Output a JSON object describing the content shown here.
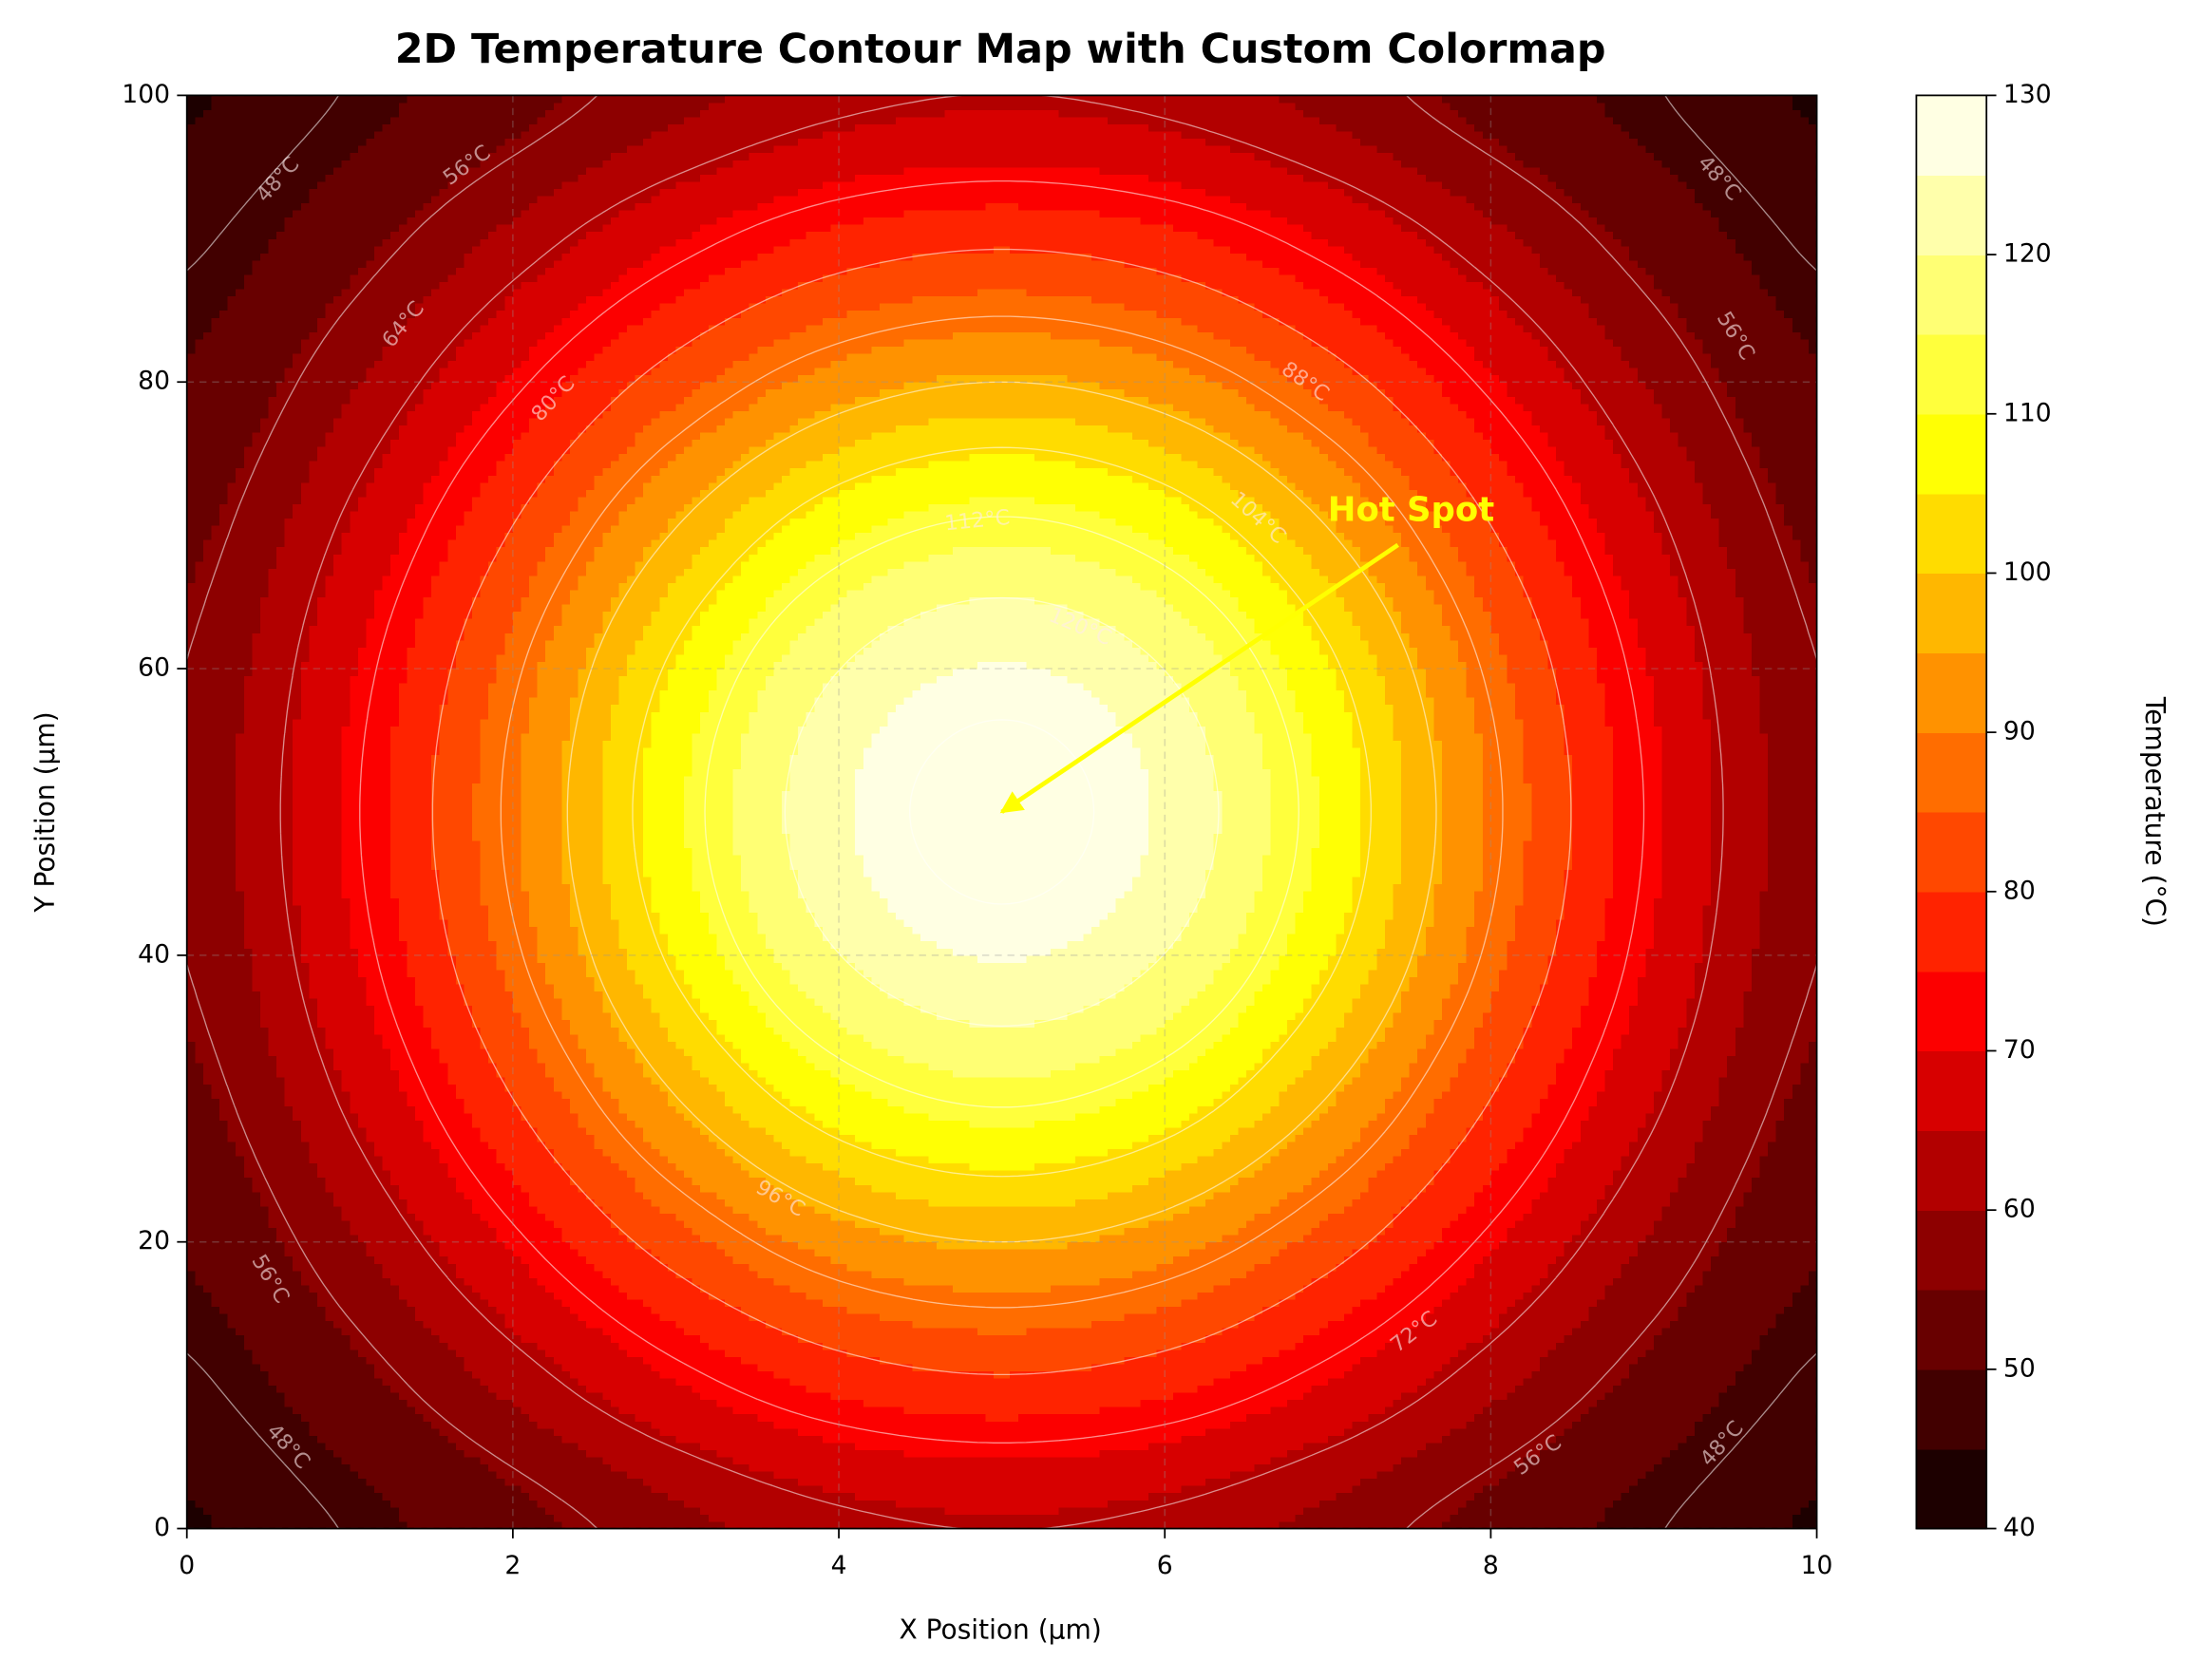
{
  "chart_data": {
    "type": "contour",
    "title": "2D Temperature Contour Map with Custom Colormap",
    "xlabel": "X Position (µm)",
    "ylabel": "Y Position (µm)",
    "colorbar_label": "Temperature (°C)",
    "colormap": "hot",
    "x": [
      0,
      1,
      2,
      3,
      4,
      5,
      6,
      7,
      8,
      9,
      10
    ],
    "y": [
      0,
      10,
      20,
      30,
      40,
      50,
      60,
      70,
      80,
      90,
      100
    ],
    "z": [
      [
        44.6,
        48.3,
        53.2,
        58.5,
        62.6,
        64.1,
        62.6,
        58.5,
        53.2,
        48.3,
        44.6
      ],
      [
        47.3,
        53.3,
        61.3,
        69.7,
        76.3,
        78.8,
        76.3,
        69.7,
        61.3,
        53.3,
        47.3
      ],
      [
        50.6,
        59.3,
        70.8,
        82.9,
        92.4,
        96.0,
        92.4,
        82.9,
        70.8,
        59.3,
        50.6
      ],
      [
        53.8,
        65.1,
        80.0,
        95.8,
        108.2,
        112.9,
        108.2,
        95.8,
        80.0,
        65.1,
        53.8
      ],
      [
        56.1,
        69.4,
        86.9,
        105.4,
        119.9,
        125.4,
        119.9,
        105.4,
        86.9,
        69.4,
        56.1
      ],
      [
        57.0,
        71.0,
        89.4,
        108.9,
        124.2,
        130.0,
        124.2,
        108.9,
        89.4,
        71.0,
        57.0
      ],
      [
        56.1,
        69.4,
        86.9,
        105.4,
        119.9,
        125.4,
        119.9,
        105.4,
        86.9,
        69.4,
        56.1
      ],
      [
        53.8,
        65.1,
        80.0,
        95.8,
        108.2,
        112.9,
        108.2,
        95.8,
        80.0,
        65.1,
        53.8
      ],
      [
        50.6,
        59.3,
        70.8,
        82.9,
        92.4,
        96.0,
        92.4,
        82.9,
        70.8,
        59.3,
        50.6
      ],
      [
        47.3,
        53.3,
        61.3,
        69.7,
        76.3,
        78.8,
        76.3,
        69.7,
        61.3,
        53.3,
        47.3
      ],
      [
        44.6,
        48.3,
        53.2,
        58.5,
        62.6,
        64.1,
        62.6,
        58.5,
        53.2,
        48.3,
        44.6
      ]
    ],
    "fill_levels": [
      40,
      45,
      50,
      55,
      60,
      65,
      70,
      75,
      80,
      85,
      90,
      95,
      100,
      105,
      110,
      115,
      120,
      125,
      130
    ],
    "contour_levels": [
      48,
      56,
      64,
      72,
      80,
      88,
      96,
      104,
      112,
      120,
      128
    ],
    "contour_labels": [
      {
        "label": "48°C",
        "x": 0.56,
        "y": 94.1
      },
      {
        "label": "56°C",
        "x": 1.72,
        "y": 95.1
      },
      {
        "label": "48°C",
        "x": 9.4,
        "y": 94.2
      },
      {
        "label": "56°C",
        "x": 9.5,
        "y": 83.2
      },
      {
        "label": "64°C",
        "x": 1.33,
        "y": 84
      },
      {
        "label": "80°C",
        "x": 2.25,
        "y": 78.8
      },
      {
        "label": "88°C",
        "x": 6.86,
        "y": 80
      },
      {
        "label": "104°C",
        "x": 6.57,
        "y": 70.5
      },
      {
        "label": "112°C",
        "x": 4.85,
        "y": 70.3
      },
      {
        "label": "120°C",
        "x": 5.48,
        "y": 62.9
      },
      {
        "label": "96°C",
        "x": 3.64,
        "y": 23
      },
      {
        "label": "56°C",
        "x": 0.51,
        "y": 17.4
      },
      {
        "label": "72°C",
        "x": 7.53,
        "y": 13.7
      },
      {
        "label": "48°C",
        "x": 0.62,
        "y": 5.7
      },
      {
        "label": "56°C",
        "x": 8.29,
        "y": 5.1
      },
      {
        "label": "48°C",
        "x": 9.42,
        "y": 5.9
      }
    ],
    "annotation": {
      "text": "Hot Spot",
      "x": 7,
      "y": 70,
      "arrow_x": 5,
      "arrow_y": 50,
      "color": "#ffff00"
    },
    "xlim": [
      0,
      10
    ],
    "ylim": [
      0,
      100
    ],
    "xticks": [
      0,
      2,
      4,
      6,
      8,
      10
    ],
    "yticks": [
      0,
      20,
      40,
      60,
      80,
      100
    ],
    "colorbar_lim": [
      40,
      130
    ],
    "colorbar_ticks": [
      40,
      50,
      60,
      70,
      80,
      90,
      100,
      110,
      120,
      130
    ],
    "grid": true
  }
}
